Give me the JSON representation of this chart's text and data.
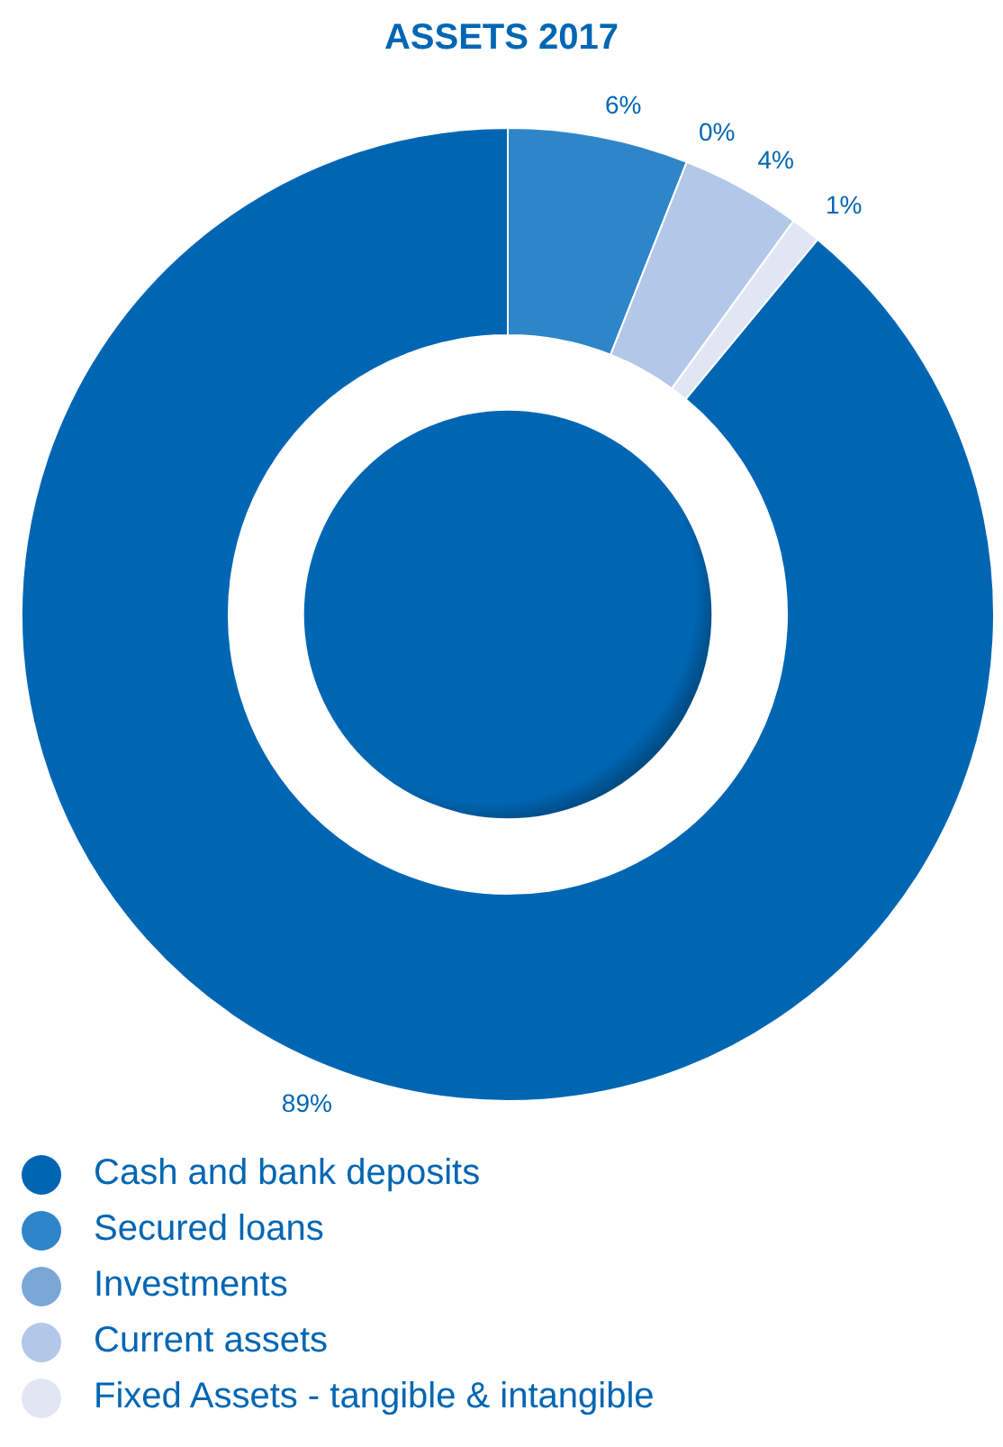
{
  "chart_data": {
    "type": "donut",
    "title": "ASSETS 2017",
    "categories": [
      "Cash and bank deposits",
      "Secured loans",
      "Investments",
      "Current assets",
      "Fixed Assets - tangible & intangible"
    ],
    "values": [
      89,
      6,
      0,
      4,
      1
    ],
    "colors": [
      "#0066b3",
      "#2e86c8",
      "#7ba7d7",
      "#b3c7e8",
      "#e0e6f4"
    ],
    "value_labels": [
      "89%",
      "6%",
      "0%",
      "4%",
      "1%"
    ],
    "legend": "bottom"
  }
}
